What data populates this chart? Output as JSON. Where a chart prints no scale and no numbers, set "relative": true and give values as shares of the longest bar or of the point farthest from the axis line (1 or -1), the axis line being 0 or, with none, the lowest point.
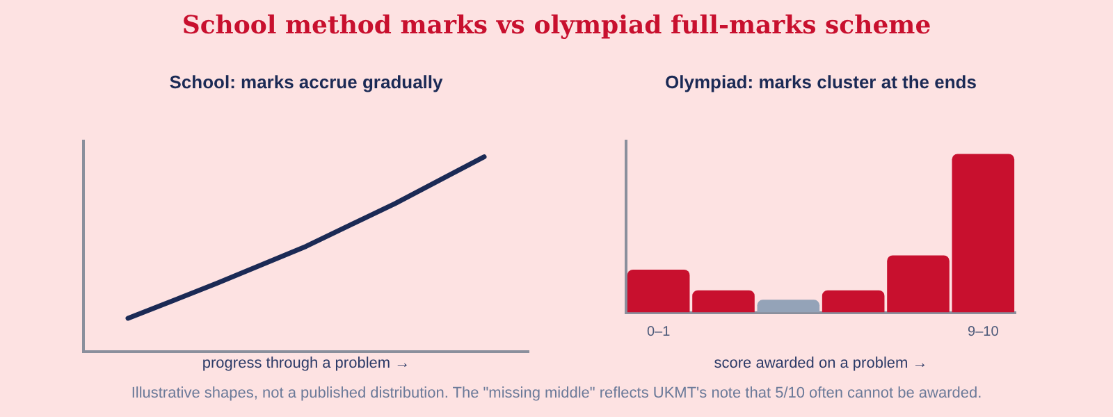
{
  "chart_data": [
    {
      "type": "line",
      "title": "School: marks accrue gradually",
      "xlabel": "progress through a problem →",
      "categories": [
        null,
        null,
        null,
        null,
        null
      ],
      "values": [
        0.17,
        0.35,
        0.54,
        0.76,
        1
      ],
      "color": "#1b2a55",
      "relative": true,
      "tick_labels": false,
      "marker": "none",
      "grid": false
    },
    {
      "type": "bar",
      "title": "Olympiad: marks cluster at the ends",
      "xlabel": "score awarded on a problem →",
      "categories": [
        "0–1",
        null,
        null,
        null,
        null,
        "9–10"
      ],
      "values": [
        0.27,
        0.14,
        0.08,
        0.14,
        0.36,
        1
      ],
      "colors": [
        "#c8102e",
        "#c8102e",
        "#94a3b8",
        "#c8102e",
        "#c8102e",
        "#c8102e"
      ],
      "relative": true,
      "tick_labels": "x",
      "grid": false
    },
    {
      "type": "other",
      "title": "School method marks vs olympiad full-marks scheme",
      "annotations": [
        "Illustrative shapes, not a published distribution. The \"missing middle\" reflects UKMT's note that 5/10 often cannot be awarded."
      ]
    }
  ]
}
